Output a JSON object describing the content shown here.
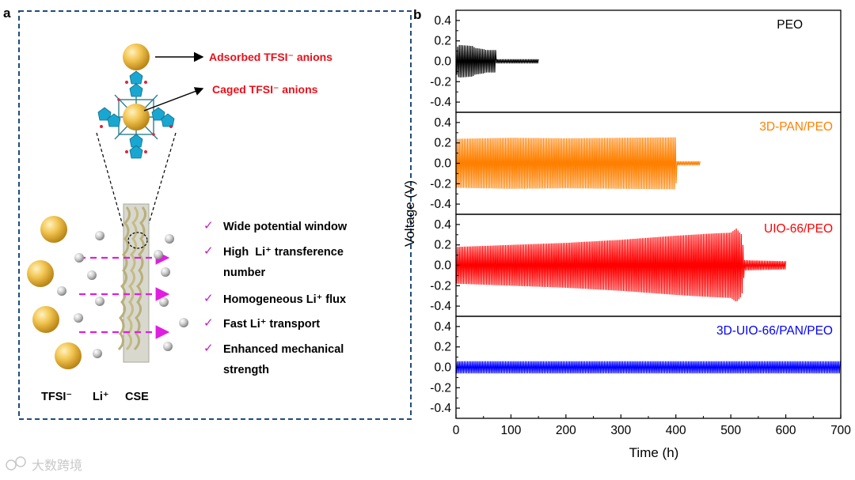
{
  "panel_a": {
    "label": "a",
    "annotations": [
      "Adsorbed TFSI⁻ anions",
      "Caged TFSI⁻ anions"
    ],
    "check_mark": "✓",
    "features": [
      [
        "Wide potential window"
      ],
      [
        "High  Li⁺ transference",
        "number"
      ],
      [
        "Homogeneous Li⁺ flux"
      ],
      [
        "Fast Li⁺ transport"
      ],
      [
        "Enhanced mechanical",
        "strength"
      ]
    ],
    "bottom_labels": [
      "TFSI⁻",
      "Li⁺",
      "CSE"
    ],
    "colors": {
      "annotation": "#e8101a",
      "check": "#c21bc2",
      "arrow": "#e01ee0",
      "frame": "#1f4e79",
      "sphere": "#e8b43a",
      "framework": "#19a7d1"
    }
  },
  "chart_data": {
    "type": "line",
    "panel_label": "b",
    "xlabel": "Time (h)",
    "ylabel": "Voltage (V)",
    "xlim": [
      0,
      700
    ],
    "ylim": [
      -0.5,
      0.5
    ],
    "xticks": [
      0,
      100,
      200,
      300,
      400,
      500,
      600,
      700
    ],
    "yticks": [
      0.4,
      0.2,
      0.0,
      -0.2,
      -0.4
    ],
    "ytick_labels": [
      "0.4",
      "0.2",
      "0.0",
      "-0.2",
      "-0.4"
    ],
    "series": [
      {
        "name": "PEO",
        "color": "#000000",
        "envelope": [
          [
            0,
            0.12
          ],
          [
            5,
            0.16
          ],
          [
            30,
            0.15
          ],
          [
            35,
            0.13
          ],
          [
            50,
            0.12
          ],
          [
            55,
            0.11
          ],
          [
            72,
            0.11
          ],
          [
            72,
            0.02
          ],
          [
            150,
            0.02
          ]
        ],
        "shorted_at": 72
      },
      {
        "name": "3D-PAN/PEO",
        "color": "#ff8000",
        "envelope": [
          [
            0,
            0.24
          ],
          [
            100,
            0.25
          ],
          [
            200,
            0.245
          ],
          [
            300,
            0.25
          ],
          [
            400,
            0.255
          ],
          [
            402,
            0.02
          ],
          [
            445,
            0.02
          ]
        ],
        "shorted_at": 402
      },
      {
        "name": "UIO-66/PEO",
        "color": "#ff0000",
        "envelope": [
          [
            0,
            0.18
          ],
          [
            100,
            0.2
          ],
          [
            200,
            0.22
          ],
          [
            300,
            0.25
          ],
          [
            400,
            0.29
          ],
          [
            460,
            0.31
          ],
          [
            500,
            0.32
          ],
          [
            510,
            0.36
          ],
          [
            520,
            0.3
          ],
          [
            525,
            0.05
          ],
          [
            600,
            0.04
          ]
        ],
        "shorted_at": 525
      },
      {
        "name": "3D-UIO-66/PAN/PEO",
        "color": "#0000ff",
        "envelope": [
          [
            0,
            0.06
          ],
          [
            700,
            0.06
          ]
        ],
        "shorted_at": null
      }
    ]
  },
  "watermark": "大数跨境"
}
